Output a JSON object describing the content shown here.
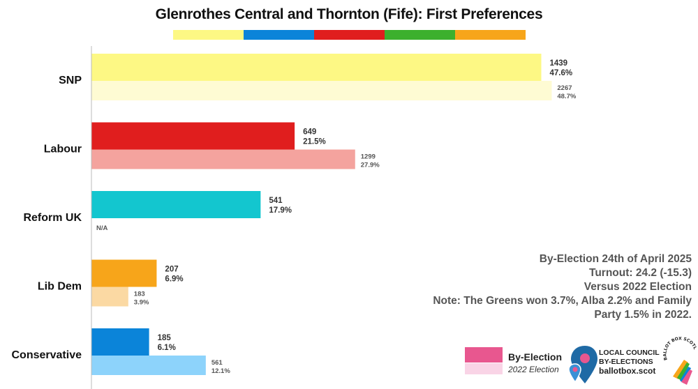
{
  "chart_data": {
    "type": "bar",
    "title": "Glenrothes Central and Thornton (Fife): First Preferences",
    "categories": [
      "SNP",
      "Labour",
      "Reform UK",
      "Lib Dem",
      "Conservative"
    ],
    "series": [
      {
        "name": "By-Election",
        "votes": [
          1439,
          649,
          541,
          207,
          185
        ],
        "values": [
          47.6,
          21.5,
          17.9,
          6.9,
          6.1
        ],
        "labels_votes": [
          "1439",
          "649",
          "541",
          "207",
          "185"
        ],
        "labels_pct": [
          "47.6%",
          "21.5%",
          "17.9%",
          "6.9%",
          "6.1%"
        ]
      },
      {
        "name": "2022 Election",
        "votes": [
          2267,
          1299,
          null,
          183,
          561
        ],
        "values": [
          48.7,
          27.9,
          null,
          3.9,
          12.1
        ],
        "labels_votes": [
          "2267",
          "1299",
          "N/A",
          "183",
          "561"
        ],
        "labels_pct": [
          "48.7%",
          "27.9%",
          "",
          "3.9%",
          "12.1%"
        ]
      }
    ],
    "colors": {
      "by_election": [
        "#fdf884",
        "#e01e1e",
        "#13c6cf",
        "#f7a51a",
        "#0b84d9"
      ],
      "election_2022": [
        "#fefbd3",
        "#f4a39e",
        null,
        "#fbd9a3",
        "#8dd3fb"
      ]
    },
    "xlim": [
      0,
      50
    ],
    "grid": false,
    "legend_position": "bottom-right"
  },
  "header_stripe_colors": [
    "#fdf884",
    "#0b84d9",
    "#e01e1e",
    "#3cb02d",
    "#f7a51a"
  ],
  "notes": [
    "By-Election 24th of April 2025",
    "Turnout: 24.2 (-15.3)",
    "Versus 2022 Election",
    "Note: The Greens won 3.7%, Alba 2.2% and Family",
    "Party 1.5% in 2022."
  ],
  "legend": {
    "by_election_label": "By-Election",
    "election_2022_label": "2022 Election",
    "by_election_color": "#e8578f",
    "election_2022_color": "#f9d4e6"
  },
  "brand": {
    "line1": "LOCAL COUNCIL",
    "line2": "BY-ELECTIONS",
    "url": "ballotbox.scot",
    "seal_text": "BALLOT BOX SCOTLAND"
  }
}
